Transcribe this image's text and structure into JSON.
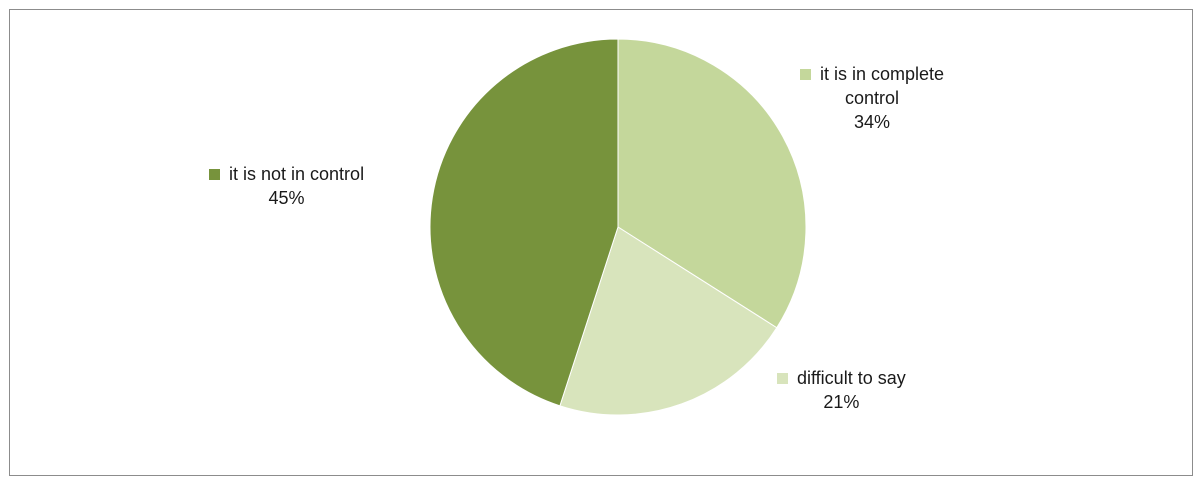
{
  "chart_data": {
    "type": "pie",
    "title": "",
    "slices": [
      {
        "label": "it is in complete control",
        "label_lines": [
          "it is in complete",
          "control"
        ],
        "value": 34,
        "value_label": "34%",
        "color": "#c4d79b"
      },
      {
        "label": "difficult to say",
        "label_lines": [
          "difficult to say"
        ],
        "value": 21,
        "value_label": "21%",
        "color": "#d8e4bc"
      },
      {
        "label": "it is not in control",
        "label_lines": [
          "it is not in control"
        ],
        "value": 45,
        "value_label": "45%",
        "color": "#77933c"
      }
    ],
    "legend": "none",
    "start_angle": "12 o'clock",
    "direction": "clockwise"
  }
}
